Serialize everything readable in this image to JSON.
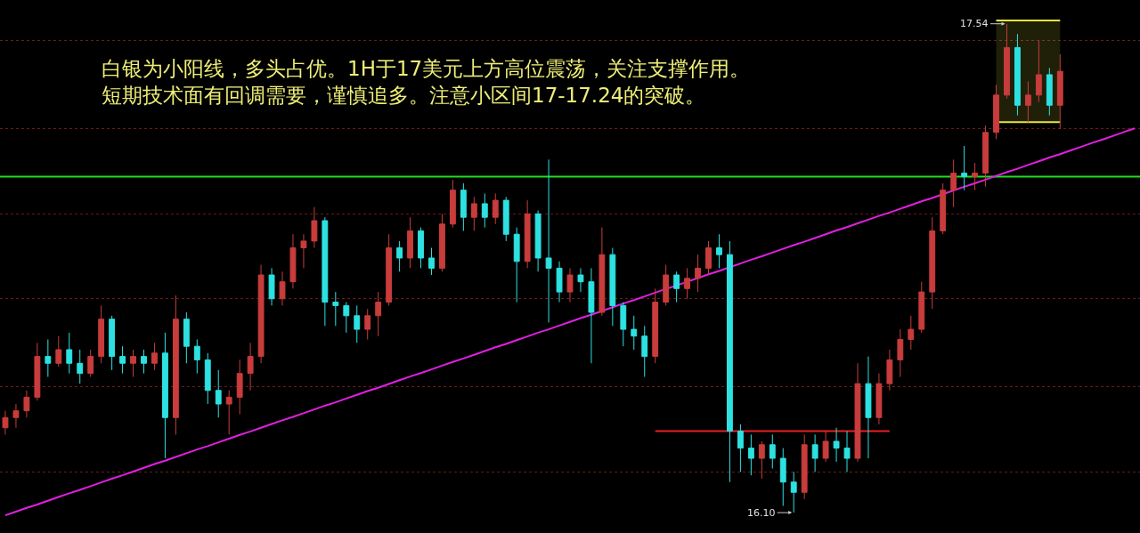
{
  "chart_data": {
    "type": "candlestick",
    "annotations": [
      "白银为小阳线，多头占优。1H于17美元上方高位震荡，关注支撑作用。短期技术面有回调需要，谨慎追多。注意小区间17-17.24的突破。",
      "17.54",
      "16.10"
    ],
    "categories": [
      null,
      null,
      null,
      null,
      null,
      null,
      null,
      null,
      null,
      null,
      null,
      null,
      null,
      null,
      null,
      null,
      null,
      null,
      null,
      null,
      null,
      null,
      null,
      null,
      null,
      null,
      null,
      null,
      null,
      null,
      null,
      null,
      null,
      null,
      null,
      null,
      null,
      null,
      null,
      null,
      null,
      null,
      null,
      null,
      null,
      null,
      null,
      null,
      null,
      null,
      null,
      null,
      null,
      null,
      null,
      null,
      null,
      null,
      null,
      null,
      null,
      null,
      null,
      null,
      null,
      null,
      null,
      null,
      null,
      null,
      null,
      null,
      null,
      null,
      null,
      null,
      null,
      null,
      null,
      null,
      null,
      null,
      null,
      null,
      null,
      null,
      null,
      null,
      null,
      null,
      null,
      null,
      null,
      null,
      null,
      null,
      null,
      null,
      null,
      null,
      null,
      null,
      null,
      null,
      null,
      null,
      null
    ],
    "ohlc": [
      [
        16.35,
        16.4,
        16.33,
        16.38
      ],
      [
        16.38,
        16.42,
        16.35,
        16.4
      ],
      [
        16.4,
        16.46,
        16.38,
        16.44
      ],
      [
        16.44,
        16.6,
        16.43,
        16.56
      ],
      [
        16.56,
        16.61,
        16.5,
        16.54
      ],
      [
        16.54,
        16.62,
        16.53,
        16.58
      ],
      [
        16.58,
        16.63,
        16.51,
        16.54
      ],
      [
        16.54,
        16.58,
        16.48,
        16.51
      ],
      [
        16.51,
        16.58,
        16.5,
        16.56
      ],
      [
        16.56,
        16.71,
        16.54,
        16.67
      ],
      [
        16.67,
        16.68,
        16.52,
        16.56
      ],
      [
        16.56,
        16.59,
        16.51,
        16.54
      ],
      [
        16.54,
        16.58,
        16.5,
        16.56
      ],
      [
        16.56,
        16.58,
        16.51,
        16.54
      ],
      [
        16.54,
        16.6,
        16.52,
        16.57
      ],
      [
        16.57,
        16.63,
        16.26,
        16.38
      ],
      [
        16.38,
        16.74,
        16.33,
        16.67
      ],
      [
        16.67,
        16.69,
        16.54,
        16.59
      ],
      [
        16.59,
        16.61,
        16.51,
        16.55
      ],
      [
        16.55,
        16.57,
        16.42,
        16.46
      ],
      [
        16.46,
        16.52,
        16.38,
        16.42
      ],
      [
        16.42,
        16.46,
        16.33,
        16.44
      ],
      [
        16.44,
        16.55,
        16.39,
        16.51
      ],
      [
        16.51,
        16.6,
        16.46,
        16.56
      ],
      [
        16.56,
        16.83,
        16.54,
        16.8
      ],
      [
        16.8,
        16.82,
        16.71,
        16.73
      ],
      [
        16.73,
        16.81,
        16.71,
        16.78
      ],
      [
        16.78,
        16.92,
        16.76,
        16.88
      ],
      [
        16.88,
        16.92,
        16.82,
        16.9
      ],
      [
        16.9,
        17.0,
        16.88,
        16.96
      ],
      [
        16.96,
        16.97,
        16.65,
        16.72
      ],
      [
        16.72,
        16.75,
        16.65,
        16.71
      ],
      [
        16.71,
        16.72,
        16.63,
        16.68
      ],
      [
        16.68,
        16.71,
        16.6,
        16.64
      ],
      [
        16.64,
        16.7,
        16.61,
        16.68
      ],
      [
        16.68,
        16.75,
        16.62,
        16.72
      ],
      [
        16.72,
        16.92,
        16.71,
        16.88
      ],
      [
        16.88,
        16.9,
        16.81,
        16.85
      ],
      [
        16.85,
        16.97,
        16.82,
        16.93
      ],
      [
        16.93,
        16.94,
        16.82,
        16.85
      ],
      [
        16.85,
        16.88,
        16.8,
        16.82
      ],
      [
        16.82,
        16.98,
        16.81,
        16.95
      ],
      [
        16.95,
        17.08,
        16.94,
        17.05
      ],
      [
        17.05,
        17.07,
        16.93,
        16.97
      ],
      [
        16.97,
        17.03,
        16.93,
        17.01
      ],
      [
        17.01,
        17.04,
        16.94,
        16.97
      ],
      [
        16.97,
        17.04,
        16.95,
        17.02
      ],
      [
        17.02,
        17.03,
        16.9,
        16.92
      ],
      [
        16.92,
        16.94,
        16.72,
        16.84
      ],
      [
        16.84,
        17.02,
        16.82,
        16.98
      ],
      [
        16.98,
        16.99,
        16.81,
        16.85
      ],
      [
        16.85,
        17.14,
        16.66,
        16.82
      ],
      [
        16.82,
        16.84,
        16.72,
        16.75
      ],
      [
        16.75,
        16.82,
        16.72,
        16.8
      ],
      [
        16.8,
        16.82,
        16.75,
        16.78
      ],
      [
        16.78,
        16.82,
        16.54,
        16.69
      ],
      [
        16.69,
        16.94,
        16.68,
        16.86
      ],
      [
        16.86,
        16.88,
        16.65,
        16.71
      ],
      [
        16.71,
        16.72,
        16.59,
        16.64
      ],
      [
        16.64,
        16.68,
        16.58,
        16.62
      ],
      [
        16.62,
        16.65,
        16.5,
        16.56
      ],
      [
        16.56,
        16.76,
        16.54,
        16.72
      ],
      [
        16.72,
        16.83,
        16.71,
        16.8
      ],
      [
        16.8,
        16.81,
        16.72,
        16.76
      ],
      [
        16.76,
        16.82,
        16.73,
        16.79
      ],
      [
        16.79,
        16.86,
        16.75,
        16.82
      ],
      [
        16.82,
        16.9,
        16.8,
        16.88
      ],
      [
        16.88,
        16.92,
        16.82,
        16.86
      ],
      [
        16.86,
        16.9,
        16.19,
        16.34
      ],
      [
        16.34,
        16.36,
        16.22,
        16.29
      ],
      [
        16.29,
        16.33,
        16.21,
        16.26
      ],
      [
        16.26,
        16.31,
        16.2,
        16.3
      ],
      [
        16.3,
        16.33,
        16.23,
        16.26
      ],
      [
        16.26,
        16.29,
        16.12,
        16.19
      ],
      [
        16.19,
        16.22,
        16.1,
        16.16
      ],
      [
        16.16,
        16.33,
        16.14,
        16.3
      ],
      [
        16.3,
        16.33,
        16.22,
        16.26
      ],
      [
        16.26,
        16.34,
        16.25,
        16.31
      ],
      [
        16.31,
        16.35,
        16.25,
        16.29
      ],
      [
        16.29,
        16.34,
        16.22,
        16.26
      ],
      [
        16.26,
        16.54,
        16.25,
        16.48
      ],
      [
        16.48,
        16.56,
        16.26,
        16.38
      ],
      [
        16.38,
        16.51,
        16.36,
        16.48
      ],
      [
        16.48,
        16.58,
        16.46,
        16.55
      ],
      [
        16.55,
        16.64,
        16.5,
        16.61
      ],
      [
        16.61,
        16.68,
        16.58,
        16.64
      ],
      [
        16.64,
        16.78,
        16.63,
        16.75
      ],
      [
        16.75,
        16.97,
        16.7,
        16.93
      ],
      [
        16.93,
        17.07,
        16.92,
        17.05
      ],
      [
        17.05,
        17.14,
        17.0,
        17.1
      ],
      [
        17.1,
        17.18,
        17.05,
        17.09
      ],
      [
        17.09,
        17.13,
        17.05,
        17.1
      ],
      [
        17.1,
        17.24,
        17.06,
        17.22
      ],
      [
        17.22,
        17.36,
        17.2,
        17.33
      ],
      [
        17.33,
        17.54,
        17.32,
        17.47
      ],
      [
        17.47,
        17.51,
        17.27,
        17.3
      ],
      [
        17.3,
        17.37,
        17.25,
        17.33
      ],
      [
        17.33,
        17.49,
        17.31,
        17.39
      ],
      [
        17.39,
        17.41,
        17.27,
        17.3
      ],
      [
        17.3,
        17.45,
        17.23,
        17.4
      ],
      null,
      null,
      null,
      null,
      null,
      null,
      null
    ],
    "colors": [
      "#c83c3c",
      "#c83c3c",
      "#c83c3c",
      "#c83c3c",
      "#2de1e1",
      "#c83c3c",
      "#2de1e1",
      "#2de1e1",
      "#c83c3c",
      "#c83c3c",
      "#2de1e1",
      "#2de1e1",
      "#c83c3c",
      "#2de1e1",
      "#c83c3c",
      "#2de1e1",
      "#c83c3c",
      "#2de1e1",
      "#2de1e1",
      "#2de1e1",
      "#2de1e1",
      "#c83c3c",
      "#c83c3c",
      "#c83c3c",
      "#c83c3c",
      "#2de1e1",
      "#c83c3c",
      "#c83c3c",
      "#c83c3c",
      "#c83c3c",
      "#2de1e1",
      "#2de1e1",
      "#2de1e1",
      "#2de1e1",
      "#c83c3c",
      "#c83c3c",
      "#c83c3c",
      "#2de1e1",
      "#c83c3c",
      "#2de1e1",
      "#2de1e1",
      "#c83c3c",
      "#c83c3c",
      "#2de1e1",
      "#c83c3c",
      "#2de1e1",
      "#c83c3c",
      "#2de1e1",
      "#2de1e1",
      "#c83c3c",
      "#2de1e1",
      "#2de1e1",
      "#2de1e1",
      "#c83c3c",
      "#2de1e1",
      "#2de1e1",
      "#c83c3c",
      "#2de1e1",
      "#2de1e1",
      "#2de1e1",
      "#2de1e1",
      "#c83c3c",
      "#c83c3c",
      "#2de1e1",
      "#c83c3c",
      "#c83c3c",
      "#c83c3c",
      "#2de1e1",
      "#2de1e1",
      "#2de1e1",
      "#2de1e1",
      "#c83c3c",
      "#2de1e1",
      "#2de1e1",
      "#2de1e1",
      "#c83c3c",
      "#2de1e1",
      "#c83c3c",
      "#2de1e1",
      "#2de1e1",
      "#c83c3c",
      "#2de1e1",
      "#c83c3c",
      "#c83c3c",
      "#c83c3c",
      "#c83c3c",
      "#c83c3c",
      "#c83c3c",
      "#c83c3c",
      "#c83c3c",
      "#2de1e1",
      "#c83c3c",
      "#c83c3c",
      "#c83c3c",
      "#c83c3c",
      "#2de1e1",
      "#c83c3c",
      "#c83c3c",
      "#2de1e1",
      "#c83c3c",
      null,
      null,
      null,
      null,
      null,
      null,
      null
    ],
    "series": [
      {
        "type": "line",
        "color": "#e020e0",
        "values": [
          16.092,
          16.103,
          16.114,
          16.124,
          16.135,
          16.146,
          16.157,
          16.167,
          16.178,
          16.189,
          16.2,
          16.21,
          16.221,
          16.232,
          16.243,
          16.253,
          16.264,
          16.275,
          16.286,
          16.296,
          16.307,
          16.318,
          16.329,
          16.339,
          16.35,
          16.361,
          16.372,
          16.382,
          16.393,
          16.404,
          16.415,
          16.425,
          16.436,
          16.447,
          16.458,
          16.468,
          16.479,
          16.49,
          16.501,
          16.511,
          16.522,
          16.533,
          16.544,
          16.554,
          16.565,
          16.576,
          16.587,
          16.597,
          16.608,
          16.619,
          16.63,
          16.64,
          16.651,
          16.662,
          16.673,
          16.683,
          16.694,
          16.705,
          16.716,
          16.726,
          16.737,
          16.748,
          16.759,
          16.769,
          16.78,
          16.791,
          16.802,
          16.812,
          16.823,
          16.834,
          16.845,
          16.855,
          16.866,
          16.877,
          16.888,
          16.898,
          16.909,
          16.92,
          16.931,
          16.941,
          16.952,
          16.963,
          16.974,
          16.984,
          16.995,
          17.006,
          17.017,
          17.027,
          17.038,
          17.049,
          17.06,
          17.07,
          17.081,
          17.092,
          17.103,
          17.113,
          17.124,
          17.135,
          17.146,
          17.156,
          17.167,
          17.178,
          17.189,
          17.199,
          17.21,
          17.221,
          17.232
        ]
      },
      {
        "type": "line",
        "color": "#e82020",
        "values": [
          null,
          null,
          null,
          null,
          null,
          null,
          null,
          null,
          null,
          null,
          null,
          null,
          null,
          null,
          null,
          null,
          null,
          null,
          null,
          null,
          null,
          null,
          null,
          null,
          null,
          null,
          null,
          null,
          null,
          null,
          null,
          null,
          null,
          null,
          null,
          null,
          null,
          null,
          null,
          null,
          null,
          null,
          null,
          null,
          null,
          null,
          null,
          null,
          null,
          null,
          null,
          null,
          null,
          null,
          null,
          null,
          null,
          null,
          null,
          null,
          null,
          16.34,
          16.34,
          16.34,
          16.34,
          16.34,
          16.34,
          16.34,
          16.34,
          16.34,
          16.34,
          16.34,
          16.34,
          16.34,
          16.34,
          16.34,
          16.34,
          16.34,
          16.34,
          16.34,
          16.34,
          16.34,
          16.34,
          16.34,
          null,
          null,
          null,
          null,
          null,
          null,
          null,
          null,
          null,
          null,
          null,
          null,
          null,
          null,
          null,
          null,
          null,
          null,
          null,
          null,
          null,
          null,
          null
        ]
      },
      {
        "type": "line",
        "color": "#e6e640",
        "values": [
          null,
          null,
          null,
          null,
          null,
          null,
          null,
          null,
          null,
          null,
          null,
          null,
          null,
          null,
          null,
          null,
          null,
          null,
          null,
          null,
          null,
          null,
          null,
          null,
          null,
          null,
          null,
          null,
          null,
          null,
          null,
          null,
          null,
          null,
          null,
          null,
          null,
          null,
          null,
          null,
          null,
          null,
          null,
          null,
          null,
          null,
          null,
          null,
          null,
          null,
          null,
          null,
          null,
          null,
          null,
          null,
          null,
          null,
          null,
          null,
          null,
          null,
          null,
          null,
          null,
          null,
          null,
          null,
          null,
          null,
          null,
          null,
          null,
          null,
          null,
          null,
          null,
          null,
          null,
          null,
          null,
          null,
          null,
          null,
          null,
          null,
          null,
          null,
          null,
          null,
          null,
          null,
          null,
          17.55,
          17.55,
          17.55,
          17.55,
          17.55,
          17.55,
          17.55,
          null,
          null,
          null,
          null,
          null,
          null,
          null
        ],
        "lower": [
          null,
          null,
          null,
          null,
          null,
          null,
          null,
          null,
          null,
          null,
          null,
          null,
          null,
          null,
          null,
          null,
          null,
          null,
          null,
          null,
          null,
          null,
          null,
          null,
          null,
          null,
          null,
          null,
          null,
          null,
          null,
          null,
          null,
          null,
          null,
          null,
          null,
          null,
          null,
          null,
          null,
          null,
          null,
          null,
          null,
          null,
          null,
          null,
          null,
          null,
          null,
          null,
          null,
          null,
          null,
          null,
          null,
          null,
          null,
          null,
          null,
          null,
          null,
          null,
          null,
          null,
          null,
          null,
          null,
          null,
          null,
          null,
          null,
          null,
          null,
          null,
          null,
          null,
          null,
          null,
          null,
          null,
          null,
          null,
          null,
          null,
          null,
          null,
          null,
          null,
          null,
          null,
          null,
          17.25,
          17.25,
          17.25,
          17.25,
          17.25,
          17.25,
          17.25,
          null,
          null,
          null,
          null,
          null,
          null,
          null
        ],
        "upper": [
          null,
          null,
          null,
          null,
          null,
          null,
          null,
          null,
          null,
          null,
          null,
          null,
          null,
          null,
          null,
          null,
          null,
          null,
          null,
          null,
          null,
          null,
          null,
          null,
          null,
          null,
          null,
          null,
          null,
          null,
          null,
          null,
          null,
          null,
          null,
          null,
          null,
          null,
          null,
          null,
          null,
          null,
          null,
          null,
          null,
          null,
          null,
          null,
          null,
          null,
          null,
          null,
          null,
          null,
          null,
          null,
          null,
          null,
          null,
          null,
          null,
          null,
          null,
          null,
          null,
          null,
          null,
          null,
          null,
          null,
          null,
          null,
          null,
          null,
          null,
          null,
          null,
          null,
          null,
          null,
          null,
          null,
          null,
          null,
          null,
          null,
          null,
          null,
          null,
          null,
          null,
          null,
          null,
          17.55,
          17.55,
          17.55,
          17.55,
          17.55,
          17.55,
          17.55,
          null,
          null,
          null,
          null,
          null,
          null,
          null
        ]
      },
      {
        "type": "line",
        "color": "#e6e640",
        "values": [
          null,
          null,
          null,
          null,
          null,
          null,
          null,
          null,
          null,
          null,
          null,
          null,
          null,
          null,
          null,
          null,
          null,
          null,
          null,
          null,
          null,
          null,
          null,
          null,
          null,
          null,
          null,
          null,
          null,
          null,
          null,
          null,
          null,
          null,
          null,
          null,
          null,
          null,
          null,
          null,
          null,
          null,
          null,
          null,
          null,
          null,
          null,
          null,
          null,
          null,
          null,
          null,
          null,
          null,
          null,
          null,
          null,
          null,
          null,
          null,
          null,
          null,
          null,
          null,
          null,
          null,
          null,
          null,
          null,
          null,
          null,
          null,
          null,
          null,
          null,
          null,
          null,
          null,
          null,
          null,
          null,
          null,
          null,
          null,
          null,
          null,
          null,
          null,
          null,
          null,
          null,
          null,
          null,
          17.25,
          17.25,
          17.25,
          17.25,
          17.25,
          17.25,
          17.25,
          null,
          null,
          null,
          null,
          null,
          null,
          null
        ]
      }
    ],
    "ref_lines": [
      {
        "axis": "y",
        "value": 17.09,
        "color": "#22dd22"
      }
    ],
    "ylim": [
      16.04,
      17.61
    ],
    "yticks": [
      {
        "value": 17.49,
        "label": null
      },
      {
        "value": 17.23,
        "label": null
      },
      {
        "value": 16.98,
        "label": null
      },
      {
        "value": 16.73,
        "label": null
      },
      {
        "value": 16.47,
        "label": null
      },
      {
        "value": 16.22,
        "label": null
      }
    ],
    "grid": "y",
    "tick_labels": false
  }
}
